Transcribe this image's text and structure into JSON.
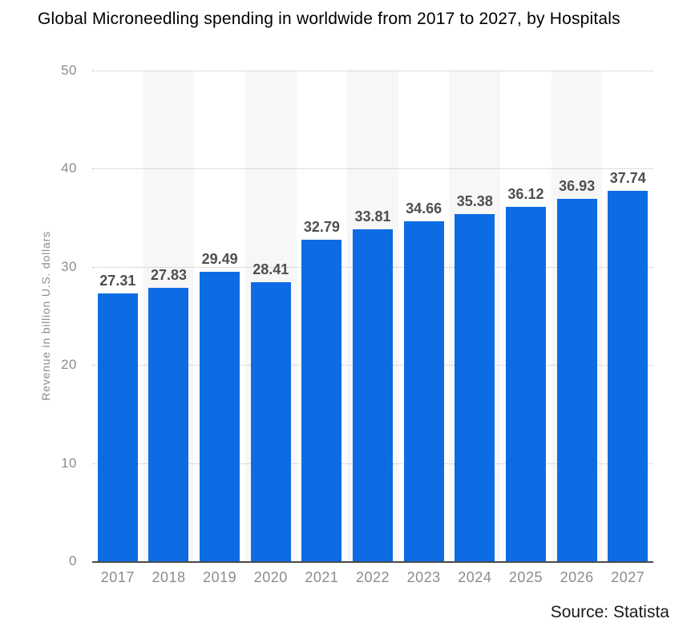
{
  "title": "Global Microneedling spending in worldwide from 2017 to 2027, by Hospitals",
  "source": "Source: Statista",
  "colors": {
    "bar": "#0d6ce4",
    "column_band": "#f7f7f7",
    "axis_text": "#8c8c8c",
    "value_label": "#4f4f4f",
    "axis_line": "#4a4a4a",
    "gridline": "#bdbdbd"
  },
  "chart_data": {
    "type": "bar",
    "title": "Global Microneedling spending in worldwide from 2017 to 2027, by Hospitals",
    "categories": [
      "2017",
      "2018",
      "2019",
      "2020",
      "2021",
      "2022",
      "2023",
      "2024",
      "2025",
      "2026",
      "2027"
    ],
    "values": [
      27.31,
      27.83,
      29.49,
      28.41,
      32.79,
      33.81,
      34.66,
      35.38,
      36.12,
      36.93,
      37.74
    ],
    "xlabel": "",
    "ylabel": "Revenue in billion U.S. dollars",
    "ylim": [
      0,
      50
    ],
    "yticks": [
      0,
      10,
      20,
      30,
      40,
      50
    ],
    "grid": "horizontal-dotted",
    "legend": "none",
    "value_labels": "above-bars",
    "banded_columns": "alternate-starting-second"
  }
}
